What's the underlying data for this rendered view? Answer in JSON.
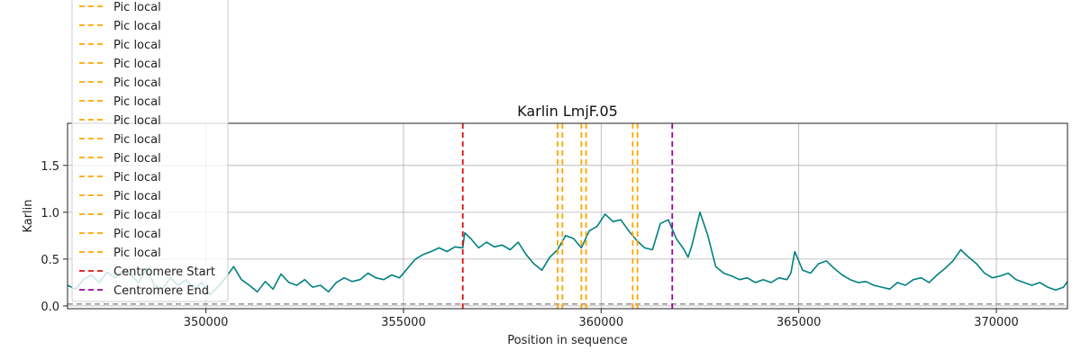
{
  "chart_data": {
    "type": "line",
    "title": "Karlin LmjF.05",
    "xlabel": "Position in sequence",
    "ylabel": "Karlin",
    "xlim": [
      346500,
      371800
    ],
    "ylim": [
      -0.03,
      1.95
    ],
    "xticks": [
      350000,
      355000,
      360000,
      365000,
      370000
    ],
    "yticks": [
      0.0,
      0.5,
      1.0,
      1.5
    ],
    "ytick_labels": [
      "0.0",
      "0.5",
      "1.0",
      "1.5"
    ],
    "grid": true,
    "legend_placement": "upper-left",
    "series_color": "#008080",
    "baseline": {
      "y": 0.02,
      "color": "#888888"
    },
    "series": [
      {
        "x": [
          346500,
          346700,
          346900,
          347100,
          347300,
          347500,
          347700,
          347900,
          348100,
          348300,
          348500,
          348700,
          348900,
          349100,
          349300,
          349500,
          349700,
          349900,
          350100,
          350300,
          350500,
          350700,
          350900,
          351100,
          351300,
          351500,
          351700,
          351900,
          352100,
          352300,
          352500,
          352700,
          352900,
          353100,
          353300,
          353500,
          353700,
          353900,
          354100,
          354300,
          354500,
          354700,
          354900,
          355100,
          355300,
          355500,
          355700,
          355900,
          356100,
          356300,
          356500,
          356550,
          356700,
          356900,
          357100,
          357300,
          357500,
          357700,
          357900,
          358100,
          358300,
          358500,
          358700,
          358900,
          359100,
          359300,
          359500,
          359700,
          359900,
          360100,
          360300,
          360500,
          360700,
          360900,
          361100,
          361300,
          361500,
          361700,
          361900,
          362100,
          362200,
          362300,
          362500,
          362700,
          362900,
          363100,
          363300,
          363500,
          363700,
          363900,
          364100,
          364300,
          364500,
          364700,
          364800,
          364900,
          365100,
          365300,
          365500,
          365700,
          365900,
          366100,
          366300,
          366500,
          366700,
          366900,
          367100,
          367300,
          367500,
          367700,
          367900,
          368100,
          368300,
          368500,
          368700,
          368900,
          369100,
          369300,
          369500,
          369700,
          369900,
          370100,
          370300,
          370500,
          370700,
          370900,
          371100,
          371300,
          371500,
          371700,
          371800
        ],
        "y": [
          0.22,
          0.18,
          0.28,
          0.33,
          0.25,
          0.36,
          0.3,
          0.38,
          0.33,
          0.25,
          0.4,
          0.22,
          0.18,
          0.3,
          0.22,
          0.28,
          0.18,
          0.25,
          0.12,
          0.2,
          0.3,
          0.42,
          0.28,
          0.22,
          0.15,
          0.26,
          0.18,
          0.34,
          0.25,
          0.22,
          0.28,
          0.2,
          0.22,
          0.15,
          0.25,
          0.3,
          0.26,
          0.28,
          0.35,
          0.3,
          0.28,
          0.33,
          0.3,
          0.4,
          0.5,
          0.55,
          0.58,
          0.62,
          0.58,
          0.63,
          0.62,
          0.78,
          0.72,
          0.62,
          0.68,
          0.63,
          0.65,
          0.6,
          0.68,
          0.55,
          0.45,
          0.38,
          0.52,
          0.6,
          0.75,
          0.72,
          0.62,
          0.8,
          0.85,
          0.98,
          0.9,
          0.92,
          0.8,
          0.7,
          0.62,
          0.6,
          0.88,
          0.92,
          0.72,
          0.6,
          0.52,
          0.65,
          1.0,
          0.75,
          0.42,
          0.35,
          0.32,
          0.28,
          0.3,
          0.25,
          0.28,
          0.25,
          0.3,
          0.28,
          0.35,
          0.58,
          0.38,
          0.35,
          0.45,
          0.48,
          0.4,
          0.33,
          0.28,
          0.25,
          0.26,
          0.22,
          0.2,
          0.18,
          0.25,
          0.22,
          0.28,
          0.3,
          0.25,
          0.33,
          0.4,
          0.48,
          0.6,
          0.52,
          0.45,
          0.35,
          0.3,
          0.32,
          0.35,
          0.28,
          0.25,
          0.22,
          0.25,
          0.2,
          0.17,
          0.2,
          0.26
        ]
      }
    ],
    "vlines": [
      {
        "x": 356500,
        "color": "#e01010",
        "label": "Centromere Start"
      },
      {
        "x": 358900,
        "color": "#ffa500",
        "label": "Pic local"
      },
      {
        "x": 359020,
        "color": "#ffa500",
        "label": "Pic local"
      },
      {
        "x": 359500,
        "color": "#ffa500",
        "label": "Pic local"
      },
      {
        "x": 359620,
        "color": "#ffa500",
        "label": "Pic local"
      },
      {
        "x": 360800,
        "color": "#ffa500",
        "label": "Pic local"
      },
      {
        "x": 360920,
        "color": "#ffa500",
        "label": "Pic local"
      },
      {
        "x": 361800,
        "color": "#9b009b",
        "label": "Centromere End"
      }
    ],
    "legend": [
      {
        "label": "Pic local",
        "color": "#ffa500"
      },
      {
        "label": "Pic local",
        "color": "#ffa500"
      },
      {
        "label": "Pic local",
        "color": "#ffa500"
      },
      {
        "label": "Pic local",
        "color": "#ffa500"
      },
      {
        "label": "Pic local",
        "color": "#ffa500"
      },
      {
        "label": "Pic local",
        "color": "#ffa500"
      },
      {
        "label": "Pic local",
        "color": "#ffa500"
      },
      {
        "label": "Pic local",
        "color": "#ffa500"
      },
      {
        "label": "Pic local",
        "color": "#ffa500"
      },
      {
        "label": "Pic local",
        "color": "#ffa500"
      },
      {
        "label": "Pic local",
        "color": "#ffa500"
      },
      {
        "label": "Pic local",
        "color": "#ffa500"
      },
      {
        "label": "Pic local",
        "color": "#ffa500"
      },
      {
        "label": "Pic local",
        "color": "#ffa500"
      },
      {
        "label": "Centromere Start",
        "color": "#e01010"
      },
      {
        "label": "Centromere End",
        "color": "#9b009b"
      }
    ]
  }
}
